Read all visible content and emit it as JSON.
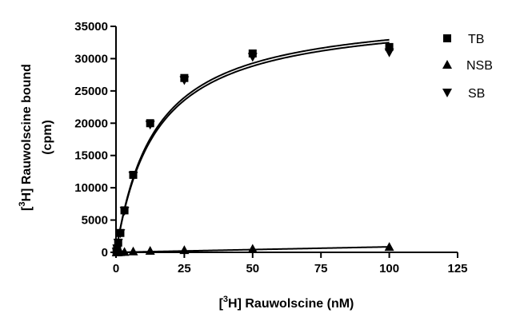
{
  "chart_data": {
    "type": "scatter",
    "title": "",
    "xlabel_parts": {
      "open": "[",
      "sup": "3",
      "rest": "H] Rauwolscine (nM)"
    },
    "ylabel_line1_parts": {
      "open": "[",
      "sup": "3",
      "rest": "H] Rauwolscine bound"
    },
    "ylabel_line2": "(cpm)",
    "xlim": [
      0,
      125
    ],
    "ylim": [
      0,
      35000
    ],
    "xticks": [
      0,
      25,
      50,
      75,
      100,
      125
    ],
    "yticks": [
      0,
      5000,
      10000,
      15000,
      20000,
      25000,
      30000,
      35000
    ],
    "xtick_labels": [
      "0",
      "25",
      "50",
      "75",
      "100",
      "125"
    ],
    "ytick_labels": [
      "0",
      "5000",
      "10000",
      "15000",
      "20000",
      "25000",
      "30000",
      "35000"
    ],
    "grid": false,
    "legend_position": "top-right",
    "series": [
      {
        "name": "TB",
        "marker": "square",
        "x": [
          0.2,
          0.4,
          0.8,
          1.6,
          3.1,
          6.3,
          12.5,
          25,
          50,
          100
        ],
        "y": [
          100,
          600,
          1500,
          3000,
          6500,
          12000,
          20000,
          27000,
          30800,
          31800
        ],
        "fit": {
          "Bmax": 37600,
          "Kd": 14.2,
          "Ns": 0.0
        }
      },
      {
        "name": "NSB",
        "marker": "triangle-up",
        "x": [
          0.2,
          0.4,
          0.8,
          1.6,
          3.1,
          6.3,
          12.5,
          25,
          50,
          100
        ],
        "y": [
          10,
          15,
          30,
          50,
          80,
          150,
          250,
          350,
          550,
          850
        ],
        "fit": {
          "Bmax": 0,
          "Kd": 1,
          "Ns": 8.5
        }
      },
      {
        "name": "SB",
        "marker": "triangle-down",
        "x": [
          0.2,
          0.4,
          0.8,
          1.6,
          3.1,
          6.3,
          12.5,
          25,
          50,
          100
        ],
        "y": [
          90,
          580,
          1470,
          2950,
          6420,
          11850,
          19750,
          26650,
          30250,
          30950
        ],
        "fit": {
          "Bmax": 37200,
          "Kd": 14.5,
          "Ns": 0.0
        }
      }
    ]
  }
}
